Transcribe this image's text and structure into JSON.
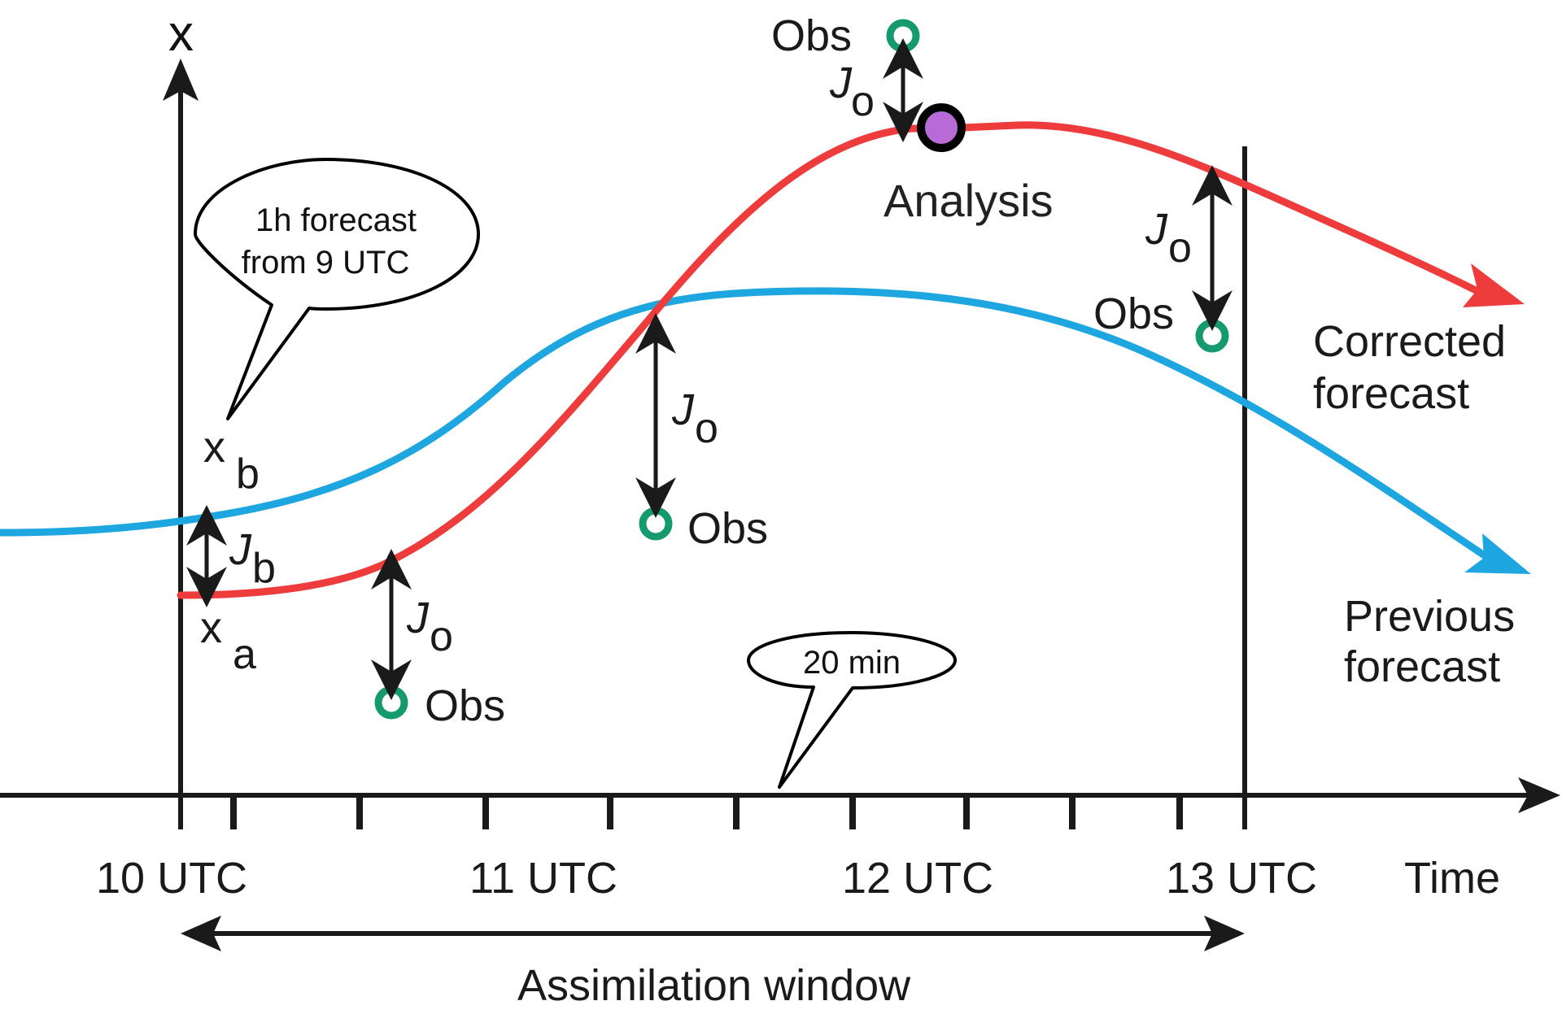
{
  "diagram": {
    "y_axis_label": "x",
    "x_axis_label": "Time",
    "time_ticks": [
      "10 UTC",
      "11 UTC",
      "12 UTC",
      "13 UTC"
    ],
    "window_label": "Assimilation window",
    "callout_background": [
      "1h forecast",
      "from 9 UTC"
    ],
    "callout_interval": "20 min",
    "state_background": {
      "main": "x",
      "sub": "b"
    },
    "state_analysis": {
      "main": "x",
      "sub": "a"
    },
    "cost_background": {
      "main": "J",
      "sub": "b"
    },
    "cost_obs": {
      "main": "J",
      "sub": "o"
    },
    "obs_label": "Obs",
    "analysis_label": "Analysis",
    "corrected_forecast": [
      "Corrected",
      "forecast"
    ],
    "previous_forecast": [
      "Previous",
      "forecast"
    ],
    "colors": {
      "corrected": "#ee3b3b",
      "previous": "#1ea6e0",
      "observation": "#149a6e",
      "analysis_fill": "#b86ad6",
      "axes": "#1a1a1a"
    }
  }
}
